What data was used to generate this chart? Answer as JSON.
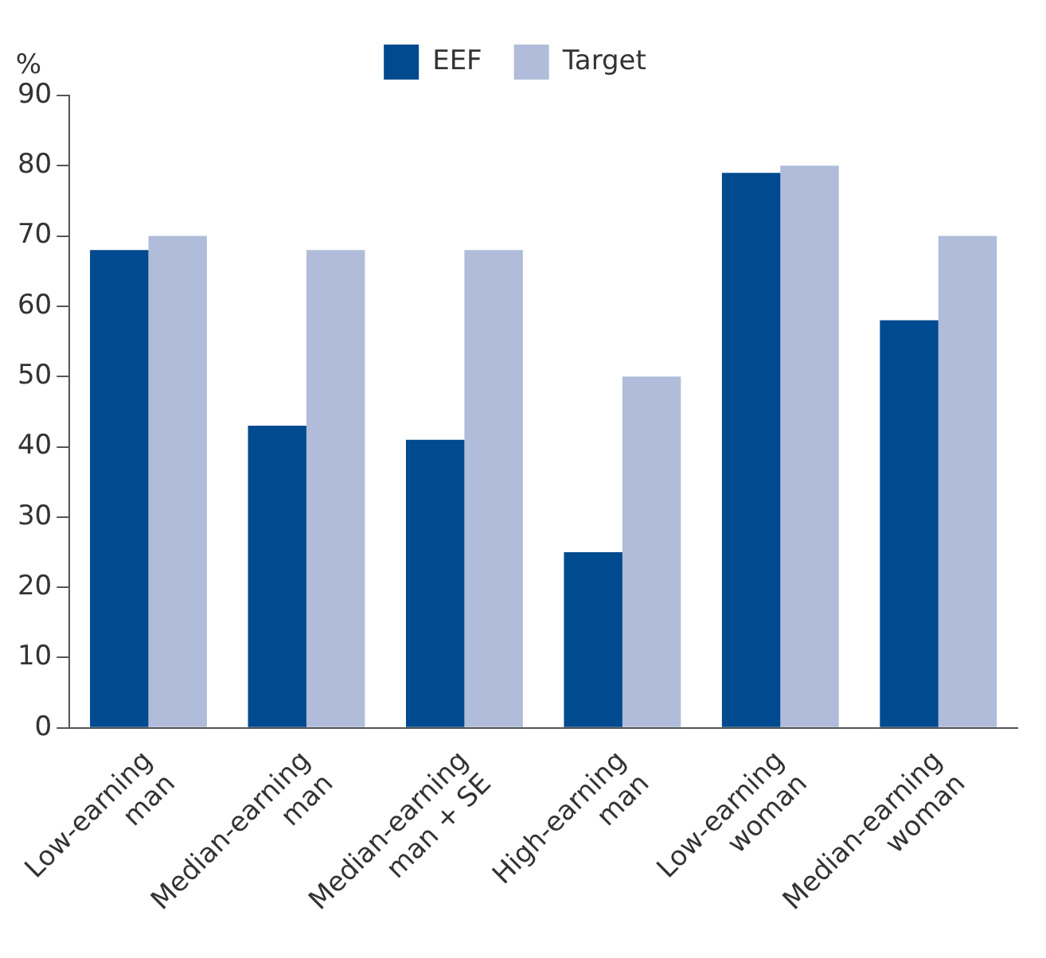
{
  "chart_data": {
    "type": "bar",
    "ylabel": "%",
    "categories": [
      "Low-earning man",
      "Median-earning man",
      "Median-earning man + SE",
      "High-earning man",
      "Low-earning woman",
      "Median-earning woman"
    ],
    "series": [
      {
        "name": "EEF",
        "color": "#004a8f",
        "values": [
          68,
          43,
          41,
          25,
          79,
          58
        ]
      },
      {
        "name": "Target",
        "color": "#b0bcd9",
        "values": [
          70,
          68,
          68,
          50,
          80,
          70
        ]
      }
    ],
    "ylim": [
      0,
      90
    ],
    "yticks": [
      0,
      10,
      20,
      30,
      40,
      50,
      60,
      70,
      80,
      90
    ],
    "grid": false,
    "legend": "top"
  }
}
